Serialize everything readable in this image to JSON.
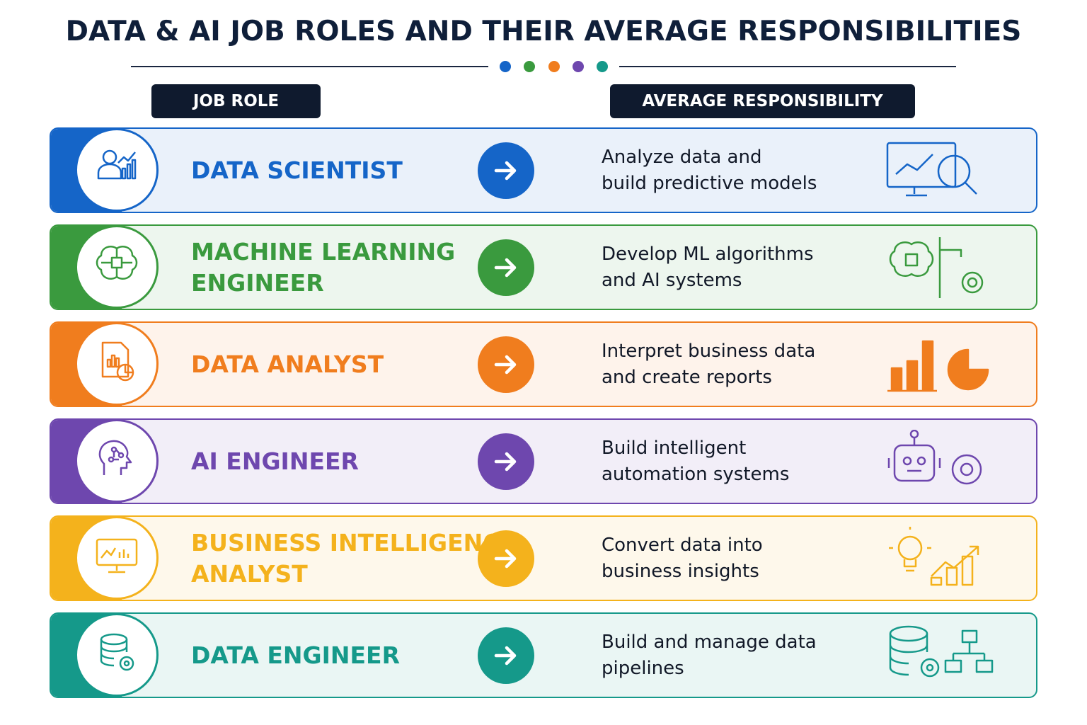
{
  "header": {
    "title": "DATA & AI JOB ROLES AND THEIR AVERAGE RESPONSIBILITIES"
  },
  "columns": [
    "JOB ROLE",
    "AVERAGE RESPONSIBILITY"
  ],
  "rows": [
    {
      "role": [
        "DATA SCIENTIST"
      ],
      "responsibility": [
        "Analyze data and",
        "build predictive models"
      ],
      "color": "#1565c8"
    },
    {
      "role": [
        "MACHINE LEARNING",
        "ENGINEER"
      ],
      "responsibility": [
        "Develop ML algorithms",
        "and AI systems"
      ],
      "color": "#3a9a3e"
    },
    {
      "role": [
        "DATA ANALYST"
      ],
      "responsibility": [
        "Interpret business data",
        "and create reports"
      ],
      "color": "#f07d1e"
    },
    {
      "role": [
        "AI ENGINEER"
      ],
      "responsibility": [
        "Build intelligent",
        "automation systems"
      ],
      "color": "#6e47ae"
    },
    {
      "role": [
        "BUSINESS INTELLIGENCE",
        "ANALYST"
      ],
      "responsibility": [
        "Convert data into",
        "business insights"
      ],
      "color": "#f4b21c"
    },
    {
      "role": [
        "DATA ENGINEER"
      ],
      "responsibility": [
        "Build and manage data",
        "pipelines"
      ],
      "color": "#15998a"
    }
  ]
}
